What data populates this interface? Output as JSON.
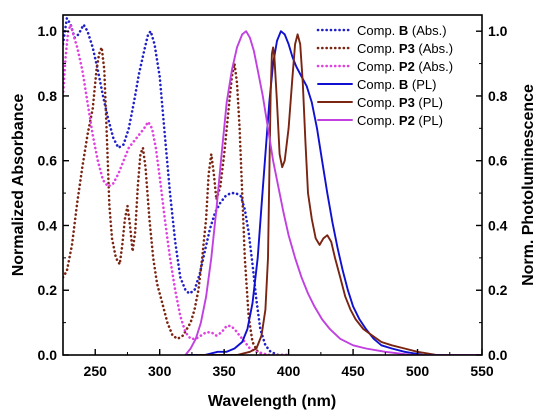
{
  "chart_data": {
    "type": "line",
    "xlabel": "Wavelength (nm)",
    "ylabel_left": "Normalized Absorbance",
    "ylabel_right": "Norm. Photoluminescence",
    "xlim": [
      225,
      550
    ],
    "ylim": [
      0,
      1.05
    ],
    "xticks": [
      250,
      300,
      350,
      400,
      450,
      500,
      550
    ],
    "yticks_left": [
      "0.0",
      "0.2",
      "0.4",
      "0.6",
      "0.8",
      "1.0"
    ],
    "yticks_right": [
      "0.0",
      "0.2",
      "0.4",
      "0.6",
      "0.8",
      "1.0"
    ],
    "legend_position": "top-right",
    "series": [
      {
        "legend_prefix": "Comp. ",
        "legend_bold": "B",
        "legend_suffix": " (Abs.)",
        "color": "#2020c8",
        "dash": "dotted",
        "points": [
          [
            225,
            0.96
          ],
          [
            228,
            1.04
          ],
          [
            231,
            1.02
          ],
          [
            234,
            0.98
          ],
          [
            237,
            0.99
          ],
          [
            241,
            1.02
          ],
          [
            244,
            1.0
          ],
          [
            248,
            0.95
          ],
          [
            252,
            0.88
          ],
          [
            256,
            0.8
          ],
          [
            260,
            0.73
          ],
          [
            264,
            0.67
          ],
          [
            268,
            0.64
          ],
          [
            272,
            0.65
          ],
          [
            276,
            0.7
          ],
          [
            280,
            0.78
          ],
          [
            284,
            0.87
          ],
          [
            288,
            0.94
          ],
          [
            291,
            0.99
          ],
          [
            293,
            1.0
          ],
          [
            296,
            0.96
          ],
          [
            300,
            0.86
          ],
          [
            304,
            0.68
          ],
          [
            308,
            0.5
          ],
          [
            312,
            0.35
          ],
          [
            316,
            0.24
          ],
          [
            320,
            0.2
          ],
          [
            323,
            0.19
          ],
          [
            327,
            0.2
          ],
          [
            331,
            0.25
          ],
          [
            335,
            0.32
          ],
          [
            339,
            0.39
          ],
          [
            343,
            0.44
          ],
          [
            347,
            0.47
          ],
          [
            351,
            0.49
          ],
          [
            355,
            0.5
          ],
          [
            359,
            0.5
          ],
          [
            363,
            0.49
          ],
          [
            366,
            0.45
          ],
          [
            369,
            0.38
          ],
          [
            372,
            0.28
          ],
          [
            375,
            0.17
          ],
          [
            378,
            0.08
          ],
          [
            382,
            0.03
          ],
          [
            386,
            0.01
          ],
          [
            392,
            0.0
          ],
          [
            400,
            0.0
          ]
        ]
      },
      {
        "legend_prefix": "Comp. ",
        "legend_bold": "P3",
        "legend_suffix": " (Abs.)",
        "color": "#7a2412",
        "dash": "dotted",
        "points": [
          [
            225,
            0.24
          ],
          [
            228,
            0.26
          ],
          [
            232,
            0.34
          ],
          [
            236,
            0.47
          ],
          [
            240,
            0.58
          ],
          [
            244,
            0.68
          ],
          [
            248,
            0.76
          ],
          [
            251,
            0.88
          ],
          [
            253,
            0.93
          ],
          [
            255,
            0.95
          ],
          [
            257,
            0.88
          ],
          [
            259,
            0.68
          ],
          [
            261,
            0.46
          ],
          [
            263,
            0.36
          ],
          [
            266,
            0.3
          ],
          [
            269,
            0.28
          ],
          [
            271,
            0.34
          ],
          [
            273,
            0.42
          ],
          [
            275,
            0.46
          ],
          [
            277,
            0.4
          ],
          [
            279,
            0.32
          ],
          [
            281,
            0.38
          ],
          [
            283,
            0.52
          ],
          [
            285,
            0.62
          ],
          [
            287,
            0.64
          ],
          [
            289,
            0.58
          ],
          [
            292,
            0.42
          ],
          [
            295,
            0.3
          ],
          [
            298,
            0.22
          ],
          [
            302,
            0.16
          ],
          [
            306,
            0.1
          ],
          [
            310,
            0.06
          ],
          [
            314,
            0.05
          ],
          [
            318,
            0.06
          ],
          [
            321,
            0.08
          ],
          [
            324,
            0.1
          ],
          [
            327,
            0.14
          ],
          [
            330,
            0.2
          ],
          [
            333,
            0.3
          ],
          [
            336,
            0.42
          ],
          [
            338,
            0.56
          ],
          [
            340,
            0.62
          ],
          [
            342,
            0.56
          ],
          [
            344,
            0.48
          ],
          [
            347,
            0.52
          ],
          [
            350,
            0.62
          ],
          [
            353,
            0.74
          ],
          [
            356,
            0.86
          ],
          [
            358,
            0.9
          ],
          [
            360,
            0.84
          ],
          [
            362,
            0.7
          ],
          [
            364,
            0.5
          ],
          [
            366,
            0.3
          ],
          [
            369,
            0.12
          ],
          [
            372,
            0.04
          ],
          [
            376,
            0.01
          ],
          [
            382,
            0.0
          ],
          [
            400,
            0.0
          ]
        ]
      },
      {
        "legend_prefix": "Comp. ",
        "legend_bold": "P2",
        "legend_suffix": " (Abs.)",
        "color": "#e040e0",
        "dash": "dotted",
        "points": [
          [
            225,
            0.8
          ],
          [
            227,
            0.92
          ],
          [
            229,
            1.0
          ],
          [
            231,
            1.02
          ],
          [
            233,
            0.99
          ],
          [
            236,
            0.95
          ],
          [
            240,
            0.88
          ],
          [
            244,
            0.78
          ],
          [
            248,
            0.68
          ],
          [
            252,
            0.6
          ],
          [
            256,
            0.54
          ],
          [
            260,
            0.52
          ],
          [
            264,
            0.53
          ],
          [
            268,
            0.56
          ],
          [
            272,
            0.6
          ],
          [
            276,
            0.64
          ],
          [
            280,
            0.66
          ],
          [
            284,
            0.68
          ],
          [
            288,
            0.7
          ],
          [
            291,
            0.72
          ],
          [
            294,
            0.7
          ],
          [
            297,
            0.64
          ],
          [
            300,
            0.55
          ],
          [
            304,
            0.42
          ],
          [
            308,
            0.3
          ],
          [
            312,
            0.2
          ],
          [
            316,
            0.12
          ],
          [
            320,
            0.07
          ],
          [
            324,
            0.05
          ],
          [
            328,
            0.05
          ],
          [
            332,
            0.06
          ],
          [
            336,
            0.07
          ],
          [
            340,
            0.07
          ],
          [
            344,
            0.06
          ],
          [
            348,
            0.07
          ],
          [
            352,
            0.09
          ],
          [
            355,
            0.09
          ],
          [
            358,
            0.08
          ],
          [
            362,
            0.06
          ],
          [
            366,
            0.04
          ],
          [
            370,
            0.02
          ],
          [
            375,
            0.01
          ],
          [
            385,
            0.0
          ],
          [
            400,
            0.0
          ]
        ]
      },
      {
        "legend_prefix": "Comp. ",
        "legend_bold": "B",
        "legend_suffix": " (PL)",
        "color": "#1010d0",
        "dash": "solid",
        "points": [
          [
            320,
            0.0
          ],
          [
            335,
            0.0
          ],
          [
            345,
            0.01
          ],
          [
            352,
            0.01
          ],
          [
            358,
            0.02
          ],
          [
            364,
            0.04
          ],
          [
            368,
            0.08
          ],
          [
            372,
            0.16
          ],
          [
            376,
            0.3
          ],
          [
            379,
            0.46
          ],
          [
            382,
            0.62
          ],
          [
            385,
            0.78
          ],
          [
            388,
            0.9
          ],
          [
            391,
            0.97
          ],
          [
            394,
            1.0
          ],
          [
            397,
            0.99
          ],
          [
            400,
            0.96
          ],
          [
            403,
            0.92
          ],
          [
            406,
            0.89
          ],
          [
            410,
            0.86
          ],
          [
            414,
            0.83
          ],
          [
            418,
            0.78
          ],
          [
            422,
            0.7
          ],
          [
            426,
            0.6
          ],
          [
            430,
            0.5
          ],
          [
            434,
            0.41
          ],
          [
            438,
            0.33
          ],
          [
            442,
            0.26
          ],
          [
            446,
            0.2
          ],
          [
            450,
            0.15
          ],
          [
            455,
            0.11
          ],
          [
            460,
            0.08
          ],
          [
            466,
            0.05
          ],
          [
            472,
            0.03
          ],
          [
            480,
            0.02
          ],
          [
            490,
            0.01
          ],
          [
            505,
            0.0
          ],
          [
            550,
            0.0
          ]
        ]
      },
      {
        "legend_prefix": "Comp. ",
        "legend_bold": "P3",
        "legend_suffix": " (PL)",
        "color": "#7a2412",
        "dash": "solid",
        "points": [
          [
            330,
            0.0
          ],
          [
            360,
            0.0
          ],
          [
            370,
            0.01
          ],
          [
            375,
            0.02
          ],
          [
            379,
            0.06
          ],
          [
            382,
            0.14
          ],
          [
            384,
            0.3
          ],
          [
            385,
            0.55
          ],
          [
            386,
            0.8
          ],
          [
            387,
            0.93
          ],
          [
            388,
            0.95
          ],
          [
            389,
            0.92
          ],
          [
            391,
            0.78
          ],
          [
            393,
            0.62
          ],
          [
            395,
            0.58
          ],
          [
            397,
            0.6
          ],
          [
            400,
            0.7
          ],
          [
            403,
            0.86
          ],
          [
            405,
            0.96
          ],
          [
            407,
            0.99
          ],
          [
            409,
            0.96
          ],
          [
            411,
            0.84
          ],
          [
            413,
            0.66
          ],
          [
            415,
            0.5
          ],
          [
            418,
            0.42
          ],
          [
            421,
            0.36
          ],
          [
            424,
            0.34
          ],
          [
            427,
            0.36
          ],
          [
            430,
            0.37
          ],
          [
            433,
            0.35
          ],
          [
            436,
            0.3
          ],
          [
            440,
            0.24
          ],
          [
            444,
            0.18
          ],
          [
            448,
            0.14
          ],
          [
            452,
            0.11
          ],
          [
            458,
            0.08
          ],
          [
            465,
            0.06
          ],
          [
            472,
            0.04
          ],
          [
            480,
            0.03
          ],
          [
            490,
            0.02
          ],
          [
            500,
            0.01
          ],
          [
            515,
            0.0
          ],
          [
            550,
            0.0
          ]
        ]
      },
      {
        "legend_prefix": "Comp. ",
        "legend_bold": "P2",
        "legend_suffix": " (PL)",
        "color": "#c040e0",
        "dash": "solid",
        "points": [
          [
            320,
            0.0
          ],
          [
            324,
            0.02
          ],
          [
            328,
            0.05
          ],
          [
            332,
            0.1
          ],
          [
            336,
            0.18
          ],
          [
            340,
            0.3
          ],
          [
            344,
            0.45
          ],
          [
            348,
            0.62
          ],
          [
            352,
            0.78
          ],
          [
            356,
            0.88
          ],
          [
            360,
            0.95
          ],
          [
            364,
            0.99
          ],
          [
            367,
            1.0
          ],
          [
            370,
            0.98
          ],
          [
            373,
            0.94
          ],
          [
            376,
            0.88
          ],
          [
            380,
            0.8
          ],
          [
            384,
            0.7
          ],
          [
            388,
            0.6
          ],
          [
            392,
            0.52
          ],
          [
            396,
            0.44
          ],
          [
            400,
            0.37
          ],
          [
            405,
            0.3
          ],
          [
            410,
            0.24
          ],
          [
            415,
            0.19
          ],
          [
            420,
            0.15
          ],
          [
            426,
            0.11
          ],
          [
            432,
            0.08
          ],
          [
            440,
            0.05
          ],
          [
            450,
            0.03
          ],
          [
            460,
            0.02
          ],
          [
            475,
            0.01
          ],
          [
            495,
            0.0
          ],
          [
            550,
            0.0
          ]
        ]
      }
    ]
  }
}
